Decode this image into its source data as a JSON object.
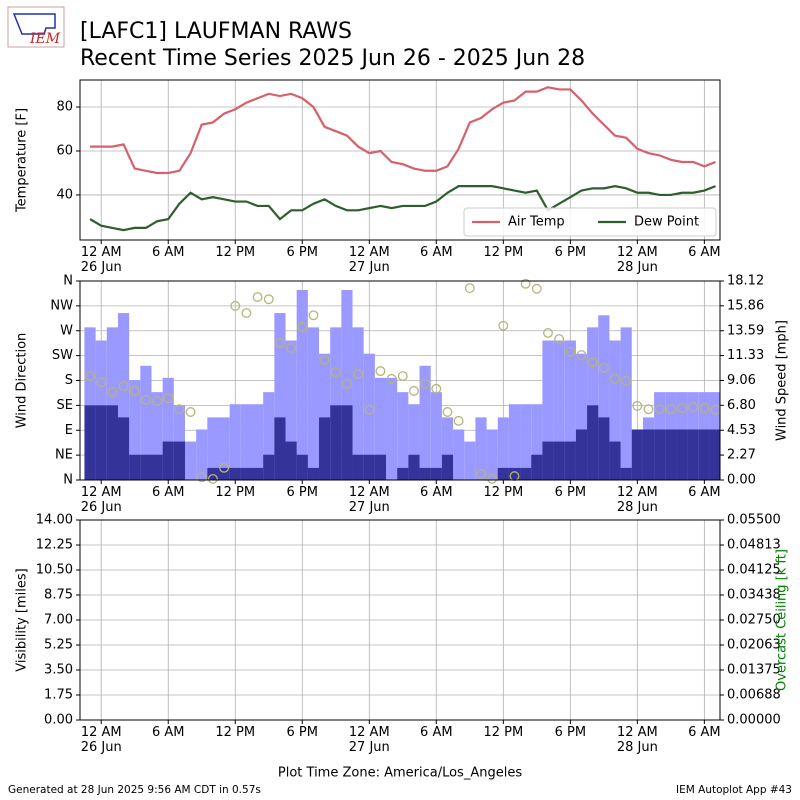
{
  "header": {
    "logo": "IEM",
    "title": "[LAFC1] LAUFMAN RAWS",
    "subtitle": "Recent Time Series 2025 Jun 26 - 2025 Jun 28"
  },
  "chart_data": [
    {
      "type": "line",
      "ylabel": "Temperature [F]",
      "x": [
        -1,
        0,
        1,
        2,
        3,
        4,
        5,
        6,
        7,
        8,
        9,
        10,
        11,
        12,
        13,
        14,
        15,
        16,
        17,
        18,
        19,
        20,
        21,
        22,
        23,
        24,
        25,
        26,
        27,
        28,
        29,
        30,
        31,
        32,
        33,
        34,
        35,
        36,
        37,
        38,
        39,
        40,
        41,
        42,
        43,
        44,
        45,
        46,
        47,
        48,
        49,
        50,
        51,
        52,
        53,
        54,
        55
      ],
      "series": [
        {
          "name": "Air Temp",
          "color": "#d6606b",
          "values": [
            62,
            62,
            62,
            63,
            52,
            51,
            50,
            50,
            51,
            59,
            72,
            73,
            77,
            79,
            82,
            84,
            86,
            85,
            86,
            84,
            80,
            71,
            69,
            67,
            62,
            59,
            60,
            55,
            54,
            52,
            51,
            51,
            53,
            61,
            73,
            75,
            79,
            82,
            83,
            87,
            87,
            89,
            88,
            88,
            83,
            77,
            72,
            67,
            66,
            61,
            59,
            58,
            56,
            55,
            55,
            53,
            55
          ]
        },
        {
          "name": "Dew Point",
          "color": "#2e5e2e",
          "values": [
            29,
            26,
            25,
            24,
            25,
            25,
            28,
            29,
            36,
            41,
            38,
            39,
            38,
            37,
            37,
            35,
            35,
            29,
            33,
            33,
            36,
            38,
            35,
            33,
            33,
            34,
            35,
            34,
            35,
            35,
            35,
            37,
            41,
            44,
            44,
            44,
            44,
            43,
            42,
            41,
            42,
            33,
            36,
            39,
            42,
            43,
            43,
            44,
            43,
            41,
            41,
            40,
            40,
            41,
            41,
            42,
            44
          ]
        }
      ],
      "xlim": [
        -1.9,
        55.4
      ],
      "xticks": [
        {
          "value": 0,
          "label": "12 AM\n26 Jun"
        },
        {
          "value": 6,
          "label": "6 AM"
        },
        {
          "value": 12,
          "label": "12 PM"
        },
        {
          "value": 18,
          "label": "6 PM"
        },
        {
          "value": 24,
          "label": "12 AM\n27 Jun"
        },
        {
          "value": 30,
          "label": "6 AM"
        },
        {
          "value": 36,
          "label": "12 PM"
        },
        {
          "value": 42,
          "label": "6 PM"
        },
        {
          "value": 48,
          "label": "12 AM\n28 Jun"
        },
        {
          "value": 54,
          "label": "6 AM"
        }
      ],
      "ylim": [
        19.5,
        92.3
      ],
      "yticks": [
        40,
        60,
        80
      ],
      "grid": true,
      "legend": "lower right"
    },
    {
      "type": "bar",
      "ylabel": "Wind Direction",
      "y2label": "Wind Speed [mph]",
      "x": [
        -1,
        0,
        1,
        2,
        3,
        4,
        5,
        6,
        7,
        8,
        9,
        10,
        11,
        12,
        13,
        14,
        15,
        16,
        17,
        18,
        19,
        20,
        21,
        22,
        23,
        24,
        25,
        26,
        27,
        28,
        29,
        30,
        31,
        32,
        33,
        34,
        35,
        36,
        37,
        38,
        39,
        40,
        41,
        42,
        43,
        44,
        45,
        46,
        47,
        48,
        49,
        50,
        51,
        52,
        53,
        54,
        55
      ],
      "series": [
        {
          "color": "#9999ff",
          "axis": "y2",
          "values": [
            13.9,
            12.7,
            13.9,
            15.2,
            9.1,
            10.4,
            8.0,
            9.3,
            6.8,
            3.5,
            4.6,
            5.7,
            5.7,
            6.9,
            6.9,
            6.9,
            8.0,
            15.2,
            12.7,
            17.3,
            13.9,
            11.5,
            13.9,
            17.3,
            13.9,
            11.5,
            9.3,
            9.3,
            8.0,
            6.9,
            10.4,
            8.0,
            5.7,
            4.6,
            3.5,
            5.7,
            4.6,
            5.7,
            6.9,
            6.9,
            6.9,
            12.7,
            12.7,
            12.7,
            11.5,
            13.9,
            15.0,
            12.7,
            13.9,
            4.6,
            5.7,
            8.0,
            8.0,
            8.0,
            8.0,
            8.0,
            8.0
          ]
        },
        {
          "color": "#333399",
          "axis": "y2",
          "values": [
            6.8,
            6.8,
            6.8,
            5.7,
            2.3,
            2.3,
            2.3,
            3.5,
            3.5,
            0,
            0,
            1.1,
            1.1,
            1.1,
            1.1,
            1.1,
            2.3,
            5.7,
            3.5,
            2.3,
            1.1,
            5.7,
            6.8,
            6.8,
            2.3,
            2.3,
            2.3,
            0,
            1.1,
            2.3,
            1.1,
            1.1,
            2.3,
            0,
            0,
            0,
            0,
            1.1,
            1.1,
            1.1,
            2.3,
            3.5,
            3.5,
            3.5,
            4.6,
            6.8,
            5.7,
            3.5,
            1.1,
            4.6,
            4.6,
            4.6,
            4.6,
            4.6,
            4.6,
            4.6,
            4.6
          ]
        },
        {
          "type": "scatter",
          "color": "#b5b57a",
          "values": [
            188,
            177,
            159,
            170,
            161,
            145,
            143,
            148,
            128,
            123,
            5,
            2,
            22,
            315,
            302,
            331,
            327,
            248,
            239,
            277,
            298,
            217,
            195,
            174,
            192,
            127,
            197,
            183,
            188,
            161,
            174,
            165,
            123,
            107,
            347,
            11,
            2,
            279,
            7,
            355,
            346,
            266,
            255,
            232,
            226,
            213,
            203,
            183,
            179,
            134,
            128,
            128,
            128,
            130,
            132,
            130,
            127
          ]
        }
      ],
      "xlim": [
        -1.9,
        55.4
      ],
      "xticks": [
        {
          "value": 0,
          "label": "12 AM\n26 Jun"
        },
        {
          "value": 6,
          "label": "6 AM"
        },
        {
          "value": 12,
          "label": "12 PM"
        },
        {
          "value": 18,
          "label": "6 PM"
        },
        {
          "value": 24,
          "label": "12 AM\n27 Jun"
        },
        {
          "value": 30,
          "label": "6 AM"
        },
        {
          "value": 36,
          "label": "12 PM"
        },
        {
          "value": 42,
          "label": "6 PM"
        },
        {
          "value": 48,
          "label": "12 AM\n28 Jun"
        },
        {
          "value": 54,
          "label": "6 AM"
        }
      ],
      "ylim": [
        0,
        360
      ],
      "yticks": [
        {
          "value": 0,
          "label": "N"
        },
        {
          "value": 45,
          "label": "NE"
        },
        {
          "value": 90,
          "label": "E"
        },
        {
          "value": 135,
          "label": "SE"
        },
        {
          "value": 180,
          "label": "S"
        },
        {
          "value": 225,
          "label": "SW"
        },
        {
          "value": 270,
          "label": "W"
        },
        {
          "value": 315,
          "label": "NW"
        },
        {
          "value": 360,
          "label": "N"
        }
      ],
      "y2lim": [
        0,
        18.12
      ],
      "y2ticks": [
        {
          "value": 0,
          "label": "0.00"
        },
        2.27,
        4.53,
        {
          "value": 6.8,
          "label": "6.80"
        },
        9.06,
        11.33,
        13.59,
        15.86,
        18.12
      ],
      "grid": true
    },
    {
      "type": "line",
      "ylabel": "Visibility [miles]",
      "y2label": "Overcast Ceiling [k ft]",
      "y2label_color": "green",
      "xlabel": "Plot Time Zone: America/Los_Angeles",
      "series": [],
      "xlim": [
        -1.9,
        55.4
      ],
      "xticks": [
        {
          "value": 0,
          "label": "12 AM\n26 Jun"
        },
        {
          "value": 6,
          "label": "6 AM"
        },
        {
          "value": 12,
          "label": "12 PM"
        },
        {
          "value": 18,
          "label": "6 PM"
        },
        {
          "value": 24,
          "label": "12 AM\n27 Jun"
        },
        {
          "value": 30,
          "label": "6 AM"
        },
        {
          "value": 36,
          "label": "12 PM"
        },
        {
          "value": 42,
          "label": "6 PM"
        },
        {
          "value": 48,
          "label": "12 AM\n28 Jun"
        },
        {
          "value": 54,
          "label": "6 AM"
        }
      ],
      "ylim": [
        0,
        14
      ],
      "yticks": [
        {
          "value": 0,
          "label": "0.00"
        },
        1.75,
        {
          "value": 3.5,
          "label": "3.50"
        },
        5.25,
        {
          "value": 7,
          "label": "7.00"
        },
        8.75,
        {
          "value": 10.5,
          "label": "10.50"
        },
        12.25,
        {
          "value": 14,
          "label": "14.00"
        }
      ],
      "y2lim": [
        0,
        0.055
      ],
      "y2ticks": [
        {
          "value": 0,
          "label": "0.00000"
        },
        {
          "value": 0.006875,
          "label": "0.00688"
        },
        0.01375,
        {
          "value": 0.020625,
          "label": "0.02063"
        },
        {
          "value": 0.0275,
          "label": "0.02750"
        },
        {
          "value": 0.034375,
          "label": "0.03438"
        },
        0.04125,
        {
          "value": 0.048125,
          "label": "0.04813"
        },
        {
          "value": 0.055,
          "label": "0.05500"
        }
      ],
      "grid": true
    }
  ],
  "footer": {
    "left": "Generated at 28 Jun 2025 9:56 AM CDT in 0.57s",
    "right": "IEM Autoplot App #43"
  }
}
